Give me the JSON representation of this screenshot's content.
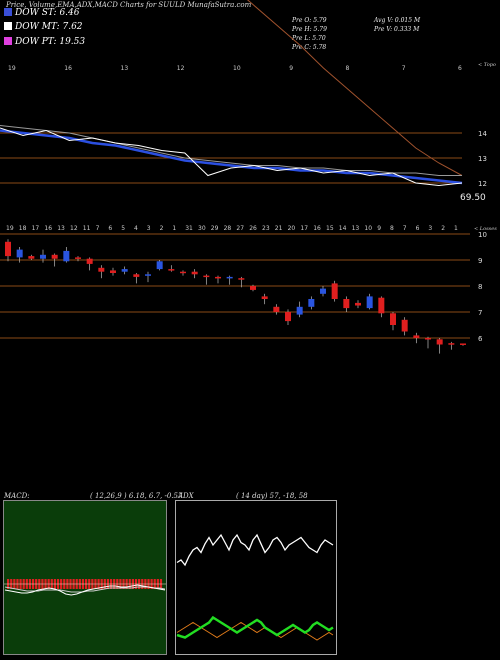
{
  "header": {
    "title": "Price, Volume,EMA,ADX,MACD Charts for SUULD MunafaSutra.com"
  },
  "legend": [
    {
      "label": "DOW ST: 6.46",
      "color": "#3a4fd8"
    },
    {
      "label": "DOW MT: 7.62",
      "color": "#ffffff"
    },
    {
      "label": "DOW PT: 19.53",
      "color": "#e040e0"
    }
  ],
  "stats": {
    "prev_open": "Pre   O: 5.79",
    "prev_high": "Pre   H: 5.79",
    "prev_low": "Pre   L: 5.70",
    "prev_close": "Pre   C: 5.78",
    "avg_volume": "Avg V: 0.015 M",
    "prev_volume": "Pre   V: 0.333 M"
  },
  "labels": {
    "upper_note": "< Topo",
    "lower_note": "< Losses",
    "value_badge": "69.50"
  },
  "chart_data": [
    {
      "type": "line",
      "name": "price-ema-panel",
      "y_ticks": [
        14,
        13,
        12
      ],
      "top_date_labels": [
        "19",
        "16",
        "13",
        "12",
        "10",
        "9",
        "8",
        "7",
        "6"
      ],
      "dow_pt": [
        31.0,
        30.6,
        30.2,
        29.7,
        29.1,
        28.5,
        27.9,
        27.3,
        26.7,
        26.1,
        25.5,
        24.9,
        24.3,
        23.7,
        23.1,
        22.6,
        22.0,
        21.5,
        21.0,
        20.5,
        19.9
      ],
      "ema_brown": [
        26.5,
        26.0,
        25.4,
        24.9,
        24.3,
        23.7,
        23.0,
        22.3,
        21.5,
        20.7,
        19.9,
        19.1,
        18.3,
        17.5,
        16.6,
        15.8,
        15.0,
        14.2,
        13.4,
        12.8,
        12.3
      ],
      "ema_gray": [
        14.3,
        14.2,
        14.1,
        14.0,
        13.8,
        13.6,
        13.4,
        13.2,
        13.0,
        12.9,
        12.8,
        12.7,
        12.7,
        12.6,
        12.6,
        12.5,
        12.5,
        12.4,
        12.4,
        12.3,
        12.3
      ],
      "dow_st": [
        14.1,
        14.0,
        13.9,
        13.8,
        13.6,
        13.5,
        13.3,
        13.1,
        12.9,
        12.8,
        12.7,
        12.6,
        12.6,
        12.5,
        12.5,
        12.4,
        12.4,
        12.3,
        12.2,
        12.1,
        12.0
      ],
      "price": [
        14.2,
        13.9,
        14.1,
        13.7,
        13.8,
        13.6,
        13.5,
        13.3,
        13.2,
        12.3,
        12.6,
        12.7,
        12.5,
        12.6,
        12.4,
        12.5,
        12.3,
        12.4,
        12.0,
        11.9,
        12.0
      ]
    },
    {
      "type": "bar",
      "name": "candles-panel",
      "y_ticks": [
        10,
        9,
        8,
        7,
        6
      ],
      "date_labels": [
        "19",
        "18",
        "17",
        "16",
        "13",
        "12",
        "11",
        "7",
        "6",
        "5",
        "4",
        "3",
        "2",
        "1",
        "31",
        "30",
        "29",
        "28",
        "27",
        "26",
        "23",
        "21",
        "20",
        "17",
        "16",
        "15",
        "14",
        "13",
        "10",
        "9",
        "8",
        "7",
        "6",
        "3",
        "2",
        "1"
      ],
      "candles": [
        {
          "o": 9.7,
          "c": 9.15,
          "h": 9.8,
          "l": 8.95
        },
        {
          "o": 9.1,
          "c": 9.4,
          "h": 9.5,
          "l": 8.9
        },
        {
          "o": 9.15,
          "c": 9.05,
          "h": 9.2,
          "l": 9.0
        },
        {
          "o": 9.05,
          "c": 9.2,
          "h": 9.4,
          "l": 8.9
        },
        {
          "o": 9.2,
          "c": 9.05,
          "h": 9.25,
          "l": 8.75
        },
        {
          "o": 8.95,
          "c": 9.35,
          "h": 9.5,
          "l": 8.9
        },
        {
          "o": 9.1,
          "c": 9.05,
          "h": 9.15,
          "l": 8.95
        },
        {
          "o": 9.05,
          "c": 8.85,
          "h": 9.1,
          "l": 8.6
        },
        {
          "o": 8.7,
          "c": 8.55,
          "h": 8.8,
          "l": 8.3
        },
        {
          "o": 8.6,
          "c": 8.5,
          "h": 8.7,
          "l": 8.4
        },
        {
          "o": 8.55,
          "c": 8.65,
          "h": 8.75,
          "l": 8.45
        },
        {
          "o": 8.45,
          "c": 8.35,
          "h": 8.5,
          "l": 8.1
        },
        {
          "o": 8.4,
          "c": 8.45,
          "h": 8.55,
          "l": 8.15
        },
        {
          "o": 8.65,
          "c": 8.95,
          "h": 9.0,
          "l": 8.6
        },
        {
          "o": 8.65,
          "c": 8.6,
          "h": 8.8,
          "l": 8.55
        },
        {
          "o": 8.55,
          "c": 8.5,
          "h": 8.6,
          "l": 8.4
        },
        {
          "o": 8.55,
          "c": 8.45,
          "h": 8.65,
          "l": 8.3
        },
        {
          "o": 8.4,
          "c": 8.35,
          "h": 8.45,
          "l": 8.05
        },
        {
          "o": 8.35,
          "c": 8.3,
          "h": 8.4,
          "l": 8.1
        },
        {
          "o": 8.3,
          "c": 8.35,
          "h": 8.4,
          "l": 8.05
        },
        {
          "o": 8.3,
          "c": 8.25,
          "h": 8.35,
          "l": 7.95
        },
        {
          "o": 8.0,
          "c": 7.85,
          "h": 8.05,
          "l": 7.8
        },
        {
          "o": 7.6,
          "c": 7.5,
          "h": 7.7,
          "l": 7.3
        },
        {
          "o": 7.2,
          "c": 7.0,
          "h": 7.3,
          "l": 6.9
        },
        {
          "o": 7.0,
          "c": 6.65,
          "h": 7.1,
          "l": 6.5
        },
        {
          "o": 6.9,
          "c": 7.2,
          "h": 7.4,
          "l": 6.8
        },
        {
          "o": 7.2,
          "c": 7.5,
          "h": 7.6,
          "l": 7.1
        },
        {
          "o": 7.7,
          "c": 7.9,
          "h": 8.0,
          "l": 7.6
        },
        {
          "o": 8.1,
          "c": 7.5,
          "h": 8.2,
          "l": 7.4
        },
        {
          "o": 7.5,
          "c": 7.15,
          "h": 7.6,
          "l": 7.0
        },
        {
          "o": 7.35,
          "c": 7.25,
          "h": 7.45,
          "l": 7.15
        },
        {
          "o": 7.15,
          "c": 7.6,
          "h": 7.7,
          "l": 7.1
        },
        {
          "o": 7.55,
          "c": 6.95,
          "h": 7.6,
          "l": 6.8
        },
        {
          "o": 6.95,
          "c": 6.5,
          "h": 7.0,
          "l": 6.3
        },
        {
          "o": 6.7,
          "c": 6.25,
          "h": 6.8,
          "l": 6.1
        },
        {
          "o": 6.1,
          "c": 6.0,
          "h": 6.2,
          "l": 5.8
        },
        {
          "o": 6.0,
          "c": 5.95,
          "h": 6.05,
          "l": 5.6
        },
        {
          "o": 5.95,
          "c": 5.75,
          "h": 6.0,
          "l": 5.4
        },
        {
          "o": 5.8,
          "c": 5.78,
          "h": 5.85,
          "l": 5.55
        },
        {
          "o": 5.79,
          "c": 5.78,
          "h": 5.79,
          "l": 5.7
        }
      ]
    },
    {
      "type": "line",
      "name": "macd-panel",
      "title": "MACD:",
      "params": "( 12,26,9 ) 6.18,  6.7,  -0.57",
      "hist_count": 50,
      "macd": [
        -0.6,
        -0.7,
        -0.8,
        -0.9,
        -0.9,
        -0.8,
        -0.6,
        -0.5,
        -0.4,
        -0.5,
        -0.7,
        -1.0,
        -1.1,
        -1.0,
        -0.8,
        -0.6,
        -0.5,
        -0.4,
        -0.3,
        -0.2,
        -0.2,
        -0.3,
        -0.3,
        -0.2,
        -0.1,
        -0.2,
        -0.3,
        -0.4,
        -0.5,
        -0.6
      ],
      "signal": [
        -0.3,
        -0.4,
        -0.5,
        -0.6,
        -0.7,
        -0.7,
        -0.7,
        -0.6,
        -0.6,
        -0.6,
        -0.6,
        -0.7,
        -0.8,
        -0.8,
        -0.8,
        -0.7,
        -0.7,
        -0.6,
        -0.5,
        -0.4,
        -0.4,
        -0.4,
        -0.4,
        -0.4,
        -0.3,
        -0.3,
        -0.3,
        -0.4,
        -0.4,
        -0.5
      ]
    },
    {
      "type": "line",
      "name": "adx-panel",
      "title": "ADX",
      "params": "( 14  day) 57,  -18,  58",
      "adx": [
        70,
        72,
        68,
        75,
        80,
        82,
        78,
        85,
        90,
        84,
        88,
        92,
        86,
        80,
        88,
        92,
        86,
        84,
        80,
        88,
        92,
        85,
        78,
        82,
        88,
        90,
        86,
        80,
        84,
        86,
        88,
        90,
        86,
        82,
        80,
        78,
        84,
        88,
        86,
        84
      ],
      "plus_di": [
        12,
        11,
        10,
        12,
        14,
        16,
        18,
        20,
        22,
        26,
        24,
        22,
        20,
        18,
        16,
        14,
        16,
        18,
        20,
        22,
        24,
        22,
        18,
        16,
        14,
        12,
        14,
        16,
        18,
        20,
        18,
        16,
        14,
        16,
        20,
        22,
        20,
        18,
        16,
        18
      ],
      "minus_di": [
        14,
        16,
        18,
        20,
        22,
        20,
        18,
        16,
        14,
        12,
        10,
        12,
        14,
        16,
        18,
        20,
        22,
        20,
        18,
        16,
        14,
        16,
        18,
        16,
        14,
        12,
        10,
        12,
        14,
        16,
        18,
        16,
        14,
        12,
        10,
        8,
        10,
        12,
        14,
        12
      ]
    }
  ]
}
